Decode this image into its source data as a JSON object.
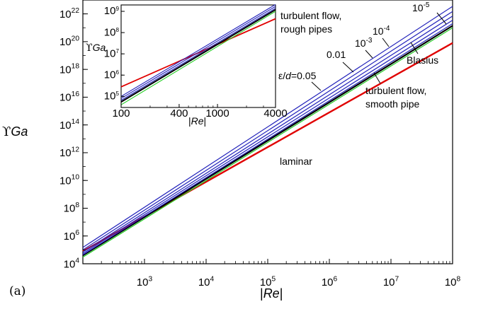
{
  "panel_label": "(a)",
  "chart_data": [
    {
      "type": "line",
      "xlabel": "|Re|",
      "ylabel": "ϒGa",
      "xscale": "log",
      "yscale": "log",
      "xlim": [
        100,
        100000000
      ],
      "ylim": [
        10000,
        1e+23
      ],
      "x_tick_labels": [
        "10^3",
        "10^4",
        "10^5",
        "10^6",
        "10^7",
        "10^8"
      ],
      "y_tick_labels": [
        "10^4",
        "10^6",
        "10^8",
        "10^10",
        "10^12",
        "10^14",
        "10^16",
        "10^18",
        "10^20",
        "10^22"
      ],
      "grid": false,
      "series": [
        {
          "name": "laminar",
          "color": "#e00000",
          "x": [
            100,
            100000000
          ],
          "y": [
            80000,
            8e+19
          ]
        },
        {
          "name": "Blasius",
          "color": "#22cc22",
          "x": [
            100,
            100000000
          ],
          "y": [
            30000,
            1e+21
          ]
        },
        {
          "name": "turbulent flow, smooth pipe",
          "color": "#000000",
          "x": [
            100,
            100000000
          ],
          "y": [
            40000,
            1.4e+21
          ]
        },
        {
          "name": "ε/d=10-5",
          "color": "#2222bb",
          "x": [
            100,
            100000000
          ],
          "y": [
            45000,
            2e+21
          ]
        },
        {
          "name": "ε/d=10-4",
          "color": "#2222bb",
          "x": [
            100,
            100000000
          ],
          "y": [
            55000,
            3.5e+21
          ]
        },
        {
          "name": "ε/d=10-3",
          "color": "#2222bb",
          "x": [
            100,
            100000000
          ],
          "y": [
            70000,
            7e+21
          ]
        },
        {
          "name": "ε/d=0.01",
          "color": "#2222bb",
          "x": [
            100,
            100000000
          ],
          "y": [
            100000,
            1.5e+22
          ]
        },
        {
          "name": "ε/d=0.05",
          "color": "#2222bb",
          "x": [
            100,
            100000000
          ],
          "y": [
            150000,
            3.5e+22
          ]
        }
      ],
      "annotations": {
        "rough": [
          "turbulent flow,",
          "rough pipes"
        ],
        "eps005": "ε/d=0.05",
        "eps001": "0.01",
        "eps3": "10-3",
        "eps4": "10-4",
        "eps5": "10-5",
        "blasius": "Blasius",
        "smooth": [
          "turbulent flow,",
          "smooth pipe"
        ],
        "laminar": "laminar"
      }
    },
    {
      "type": "line",
      "xlabel": "|Re|",
      "ylabel": "ϒGa",
      "xscale": "log",
      "yscale": "log",
      "xlim": [
        100,
        4000
      ],
      "ylim": [
        30000,
        2000000000
      ],
      "x_tick_labels": [
        "100",
        "400",
        "1000",
        "4000"
      ],
      "y_tick_labels": [
        "10^5",
        "10^6",
        "10^7",
        "10^8",
        "10^9"
      ],
      "grid": false,
      "series": [
        {
          "name": "laminar",
          "color": "#e00000",
          "x": [
            100,
            4000
          ],
          "y": [
            280000,
            450000000
          ]
        },
        {
          "name": "Blasius",
          "color": "#22cc22",
          "x": [
            100,
            4000
          ],
          "y": [
            40000,
            1000000000
          ]
        },
        {
          "name": "turbulent flow, smooth pipe",
          "color": "#000000",
          "x": [
            100,
            4000
          ],
          "y": [
            55000,
            1200000000
          ]
        },
        {
          "name": "ε/d=10-4",
          "color": "#2222bb",
          "x": [
            100,
            4000
          ],
          "y": [
            65000,
            1400000000
          ]
        },
        {
          "name": "ε/d=10-3",
          "color": "#2222bb",
          "x": [
            100,
            4000
          ],
          "y": [
            80000,
            1700000000
          ]
        },
        {
          "name": "ε/d=0.01",
          "color": "#2222bb",
          "x": [
            100,
            4000
          ],
          "y": [
            100000,
            2100000000
          ]
        }
      ]
    }
  ]
}
